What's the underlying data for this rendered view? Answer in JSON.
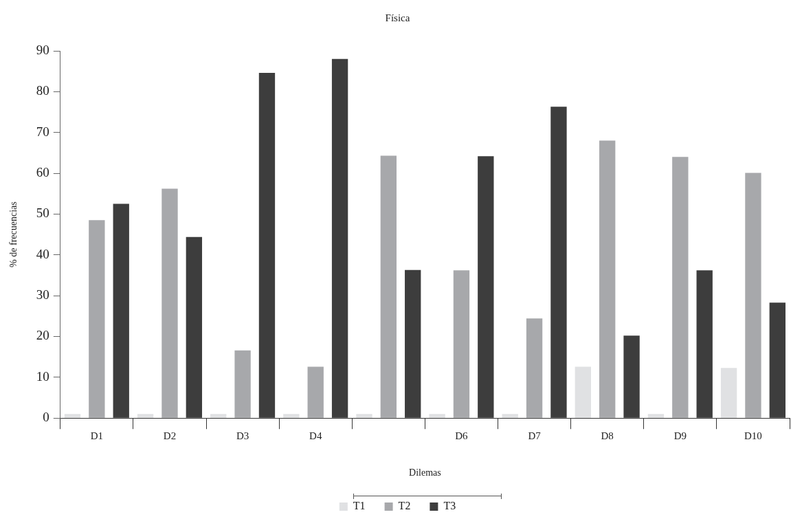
{
  "chart_data": {
    "type": "bar",
    "title": "Física",
    "xlabel": "Dilemas",
    "ylabel": "% de frecuencias",
    "categories": [
      "D1",
      "D2",
      "D3",
      "D4",
      null,
      "D6",
      "D7",
      "D8",
      "D9",
      "D10"
    ],
    "series": [
      {
        "name": "T1",
        "color": "#e0e1e3",
        "values": [
          1,
          1,
          1,
          1,
          1,
          1,
          1,
          12.6,
          1,
          12.3
        ]
      },
      {
        "name": "T2",
        "color": "#a7a8ab",
        "values": [
          48.5,
          56.2,
          16.6,
          12.6,
          64.3,
          36.2,
          24.4,
          68.0,
          64.0,
          60.1
        ]
      },
      {
        "name": "T3",
        "color": "#3d3d3d",
        "values": [
          52.5,
          44.4,
          84.6,
          88.0,
          36.3,
          64.2,
          76.3,
          20.2,
          36.2,
          28.3
        ]
      }
    ],
    "ylim": [
      0,
      90
    ],
    "yticks": [
      0,
      10,
      20,
      30,
      40,
      50,
      60,
      70,
      80,
      90
    ],
    "grid": false,
    "legend": "bottom"
  }
}
